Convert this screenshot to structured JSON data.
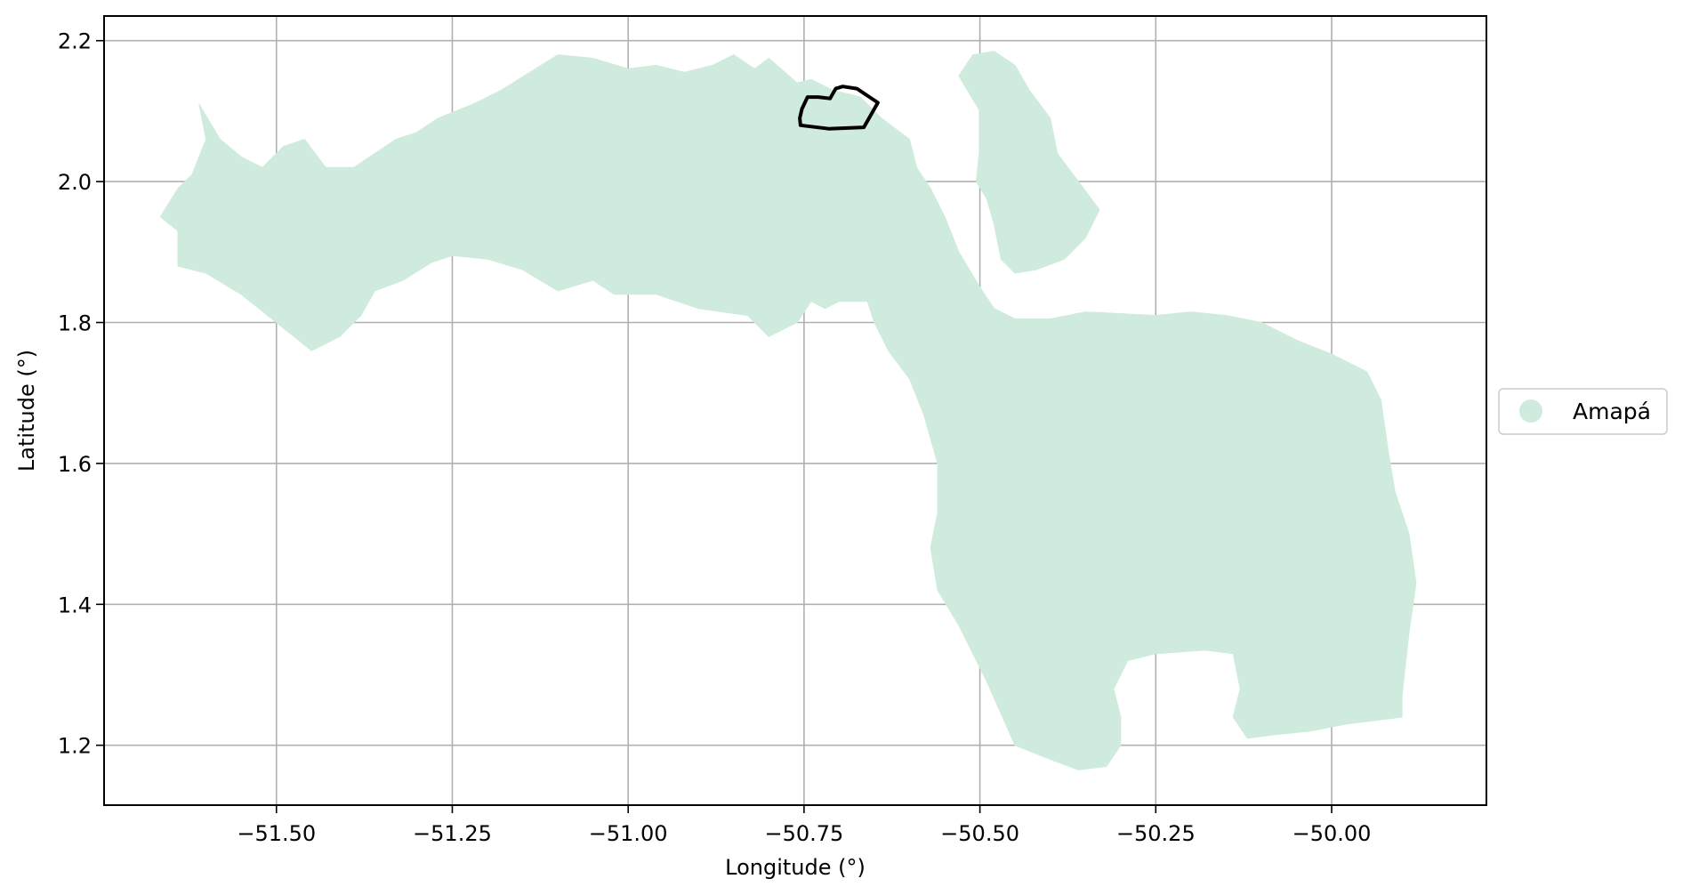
{
  "chart_data": {
    "type": "map",
    "xlabel": "Longitude (°)",
    "ylabel": "Latitude (°)",
    "xlim": [
      -51.745,
      -49.78
    ],
    "ylim": [
      1.115,
      2.235
    ],
    "x_ticks": [
      -51.5,
      -51.25,
      -51.0,
      -50.75,
      -50.5,
      -50.25,
      -50.0
    ],
    "x_tick_labels": [
      "−51.50",
      "−51.25",
      "−51.00",
      "−50.75",
      "−50.50",
      "−50.25",
      "−50.00"
    ],
    "y_ticks": [
      1.2,
      1.4,
      1.6,
      1.8,
      2.0,
      2.2
    ],
    "y_tick_labels": [
      "1.2",
      "1.4",
      "1.6",
      "1.8",
      "2.0",
      "2.2"
    ],
    "grid": true,
    "legend_placement": "center-right outside",
    "series": [
      {
        "name": "Amapá",
        "color": "#cfebdd",
        "regions": [
          {
            "part": "mainland",
            "coords": [
              [
                -51.61,
                2.11
              ],
              [
                -51.58,
                2.06
              ],
              [
                -51.55,
                2.035
              ],
              [
                -51.52,
                2.02
              ],
              [
                -51.49,
                2.05
              ],
              [
                -51.46,
                2.06
              ],
              [
                -51.43,
                2.02
              ],
              [
                -51.39,
                2.02
              ],
              [
                -51.36,
                2.04
              ],
              [
                -51.33,
                2.06
              ],
              [
                -51.3,
                2.07
              ],
              [
                -51.27,
                2.09
              ],
              [
                -51.22,
                2.11
              ],
              [
                -51.18,
                2.13
              ],
              [
                -51.14,
                2.155
              ],
              [
                -51.1,
                2.18
              ],
              [
                -51.05,
                2.175
              ],
              [
                -51.0,
                2.16
              ],
              [
                -50.96,
                2.165
              ],
              [
                -50.92,
                2.155
              ],
              [
                -50.88,
                2.165
              ],
              [
                -50.85,
                2.18
              ],
              [
                -50.82,
                2.16
              ],
              [
                -50.8,
                2.175
              ],
              [
                -50.76,
                2.14
              ],
              [
                -50.74,
                2.145
              ],
              [
                -50.71,
                2.13
              ],
              [
                -50.67,
                2.12
              ],
              [
                -50.64,
                2.09
              ],
              [
                -50.6,
                2.06
              ],
              [
                -50.59,
                2.02
              ],
              [
                -50.57,
                1.99
              ],
              [
                -50.55,
                1.95
              ],
              [
                -50.53,
                1.9
              ],
              [
                -50.5,
                1.85
              ],
              [
                -50.48,
                1.82
              ],
              [
                -50.45,
                1.805
              ],
              [
                -50.4,
                1.805
              ],
              [
                -50.35,
                1.815
              ],
              [
                -50.25,
                1.81
              ],
              [
                -50.2,
                1.815
              ],
              [
                -50.15,
                1.81
              ],
              [
                -50.1,
                1.8
              ],
              [
                -50.05,
                1.775
              ],
              [
                -50.0,
                1.755
              ],
              [
                -49.95,
                1.73
              ],
              [
                -49.93,
                1.69
              ],
              [
                -49.92,
                1.62
              ],
              [
                -49.91,
                1.56
              ],
              [
                -49.89,
                1.5
              ],
              [
                -49.88,
                1.43
              ],
              [
                -49.89,
                1.36
              ],
              [
                -49.9,
                1.27
              ],
              [
                -49.9,
                1.24
              ],
              [
                -49.94,
                1.235
              ],
              [
                -49.98,
                1.23
              ],
              [
                -50.03,
                1.22
              ],
              [
                -50.08,
                1.215
              ],
              [
                -50.12,
                1.21
              ],
              [
                -50.14,
                1.24
              ],
              [
                -50.13,
                1.28
              ],
              [
                -50.14,
                1.33
              ],
              [
                -50.18,
                1.335
              ],
              [
                -50.25,
                1.33
              ],
              [
                -50.29,
                1.32
              ],
              [
                -50.31,
                1.28
              ],
              [
                -50.3,
                1.24
              ],
              [
                -50.3,
                1.2
              ],
              [
                -50.32,
                1.17
              ],
              [
                -50.36,
                1.165
              ],
              [
                -50.4,
                1.18
              ],
              [
                -50.45,
                1.2
              ],
              [
                -50.49,
                1.29
              ],
              [
                -50.53,
                1.37
              ],
              [
                -50.56,
                1.42
              ],
              [
                -50.57,
                1.48
              ],
              [
                -50.56,
                1.53
              ],
              [
                -50.56,
                1.6
              ],
              [
                -50.58,
                1.67
              ],
              [
                -50.6,
                1.72
              ],
              [
                -50.63,
                1.76
              ],
              [
                -50.65,
                1.8
              ],
              [
                -50.66,
                1.83
              ],
              [
                -50.7,
                1.83
              ],
              [
                -50.72,
                1.82
              ],
              [
                -50.74,
                1.83
              ],
              [
                -50.76,
                1.8
              ],
              [
                -50.8,
                1.78
              ],
              [
                -50.83,
                1.81
              ],
              [
                -50.9,
                1.82
              ],
              [
                -50.96,
                1.84
              ],
              [
                -51.02,
                1.84
              ],
              [
                -51.05,
                1.86
              ],
              [
                -51.1,
                1.845
              ],
              [
                -51.15,
                1.875
              ],
              [
                -51.2,
                1.89
              ],
              [
                -51.25,
                1.895
              ],
              [
                -51.28,
                1.885
              ],
              [
                -51.32,
                1.86
              ],
              [
                -51.36,
                1.845
              ],
              [
                -51.38,
                1.81
              ],
              [
                -51.41,
                1.78
              ],
              [
                -51.45,
                1.76
              ],
              [
                -51.5,
                1.8
              ],
              [
                -51.55,
                1.84
              ],
              [
                -51.6,
                1.87
              ],
              [
                -51.64,
                1.88
              ],
              [
                -51.64,
                1.93
              ],
              [
                -51.665,
                1.95
              ],
              [
                -51.64,
                1.99
              ],
              [
                -51.62,
                2.01
              ],
              [
                -51.6,
                2.06
              ]
            ]
          },
          {
            "part": "island",
            "coords": [
              [
                -50.53,
                2.15
              ],
              [
                -50.51,
                2.18
              ],
              [
                -50.48,
                2.185
              ],
              [
                -50.45,
                2.165
              ],
              [
                -50.43,
                2.13
              ],
              [
                -50.4,
                2.09
              ],
              [
                -50.39,
                2.04
              ],
              [
                -50.36,
                2.0
              ],
              [
                -50.33,
                1.96
              ],
              [
                -50.35,
                1.92
              ],
              [
                -50.38,
                1.89
              ],
              [
                -50.42,
                1.875
              ],
              [
                -50.45,
                1.87
              ],
              [
                -50.47,
                1.89
              ],
              [
                -50.48,
                1.94
              ],
              [
                -50.49,
                1.975
              ],
              [
                -50.505,
                2.0
              ],
              [
                -50.5,
                2.05
              ],
              [
                -50.5,
                2.1
              ]
            ]
          }
        ]
      }
    ],
    "highlight_outline": {
      "color": "#000000",
      "coords": [
        [
          -50.755,
          2.08
        ],
        [
          -50.715,
          2.075
        ],
        [
          -50.665,
          2.077
        ],
        [
          -50.645,
          2.112
        ],
        [
          -50.66,
          2.122
        ],
        [
          -50.675,
          2.132
        ],
        [
          -50.695,
          2.135
        ],
        [
          -50.705,
          2.132
        ],
        [
          -50.713,
          2.118
        ],
        [
          -50.73,
          2.12
        ],
        [
          -50.745,
          2.12
        ],
        [
          -50.753,
          2.103
        ],
        [
          -50.756,
          2.09
        ]
      ]
    }
  }
}
